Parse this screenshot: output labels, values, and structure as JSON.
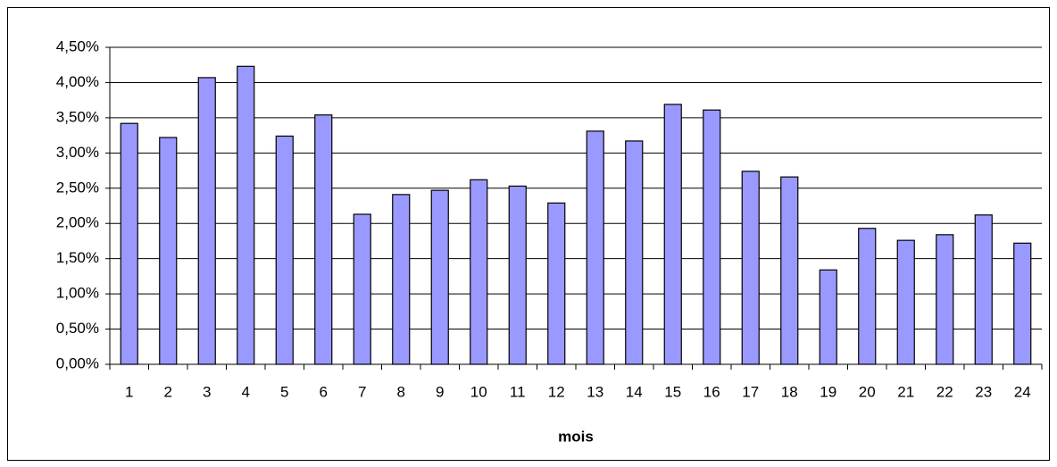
{
  "chart_data": {
    "type": "bar",
    "x_label": "mois",
    "categories": [
      "1",
      "2",
      "3",
      "4",
      "5",
      "6",
      "7",
      "8",
      "9",
      "10",
      "11",
      "12",
      "13",
      "14",
      "15",
      "16",
      "17",
      "18",
      "19",
      "20",
      "21",
      "22",
      "23",
      "24"
    ],
    "values": [
      3.42,
      3.22,
      4.07,
      4.23,
      3.24,
      3.54,
      2.13,
      2.41,
      2.47,
      2.62,
      2.53,
      2.29,
      3.31,
      3.17,
      3.69,
      3.61,
      2.74,
      2.66,
      1.34,
      1.93,
      1.76,
      1.84,
      2.12,
      1.72
    ],
    "color": "#9999ff",
    "ylim": [
      0,
      4.5
    ],
    "yticks": [
      {
        "value": 0,
        "label": "0,00%"
      },
      {
        "value": 0.5,
        "label": "0,50%"
      },
      {
        "value": 1,
        "label": "1,00%"
      },
      {
        "value": 1.5,
        "label": "1,50%"
      },
      {
        "value": 2,
        "label": "2,00%"
      },
      {
        "value": 2.5,
        "label": "2,50%"
      },
      {
        "value": 3,
        "label": "3,00%"
      },
      {
        "value": 3.5,
        "label": "3,50%"
      },
      {
        "value": 4,
        "label": "4,00%"
      },
      {
        "value": 4.5,
        "label": "4,50%"
      }
    ],
    "grid": true
  }
}
